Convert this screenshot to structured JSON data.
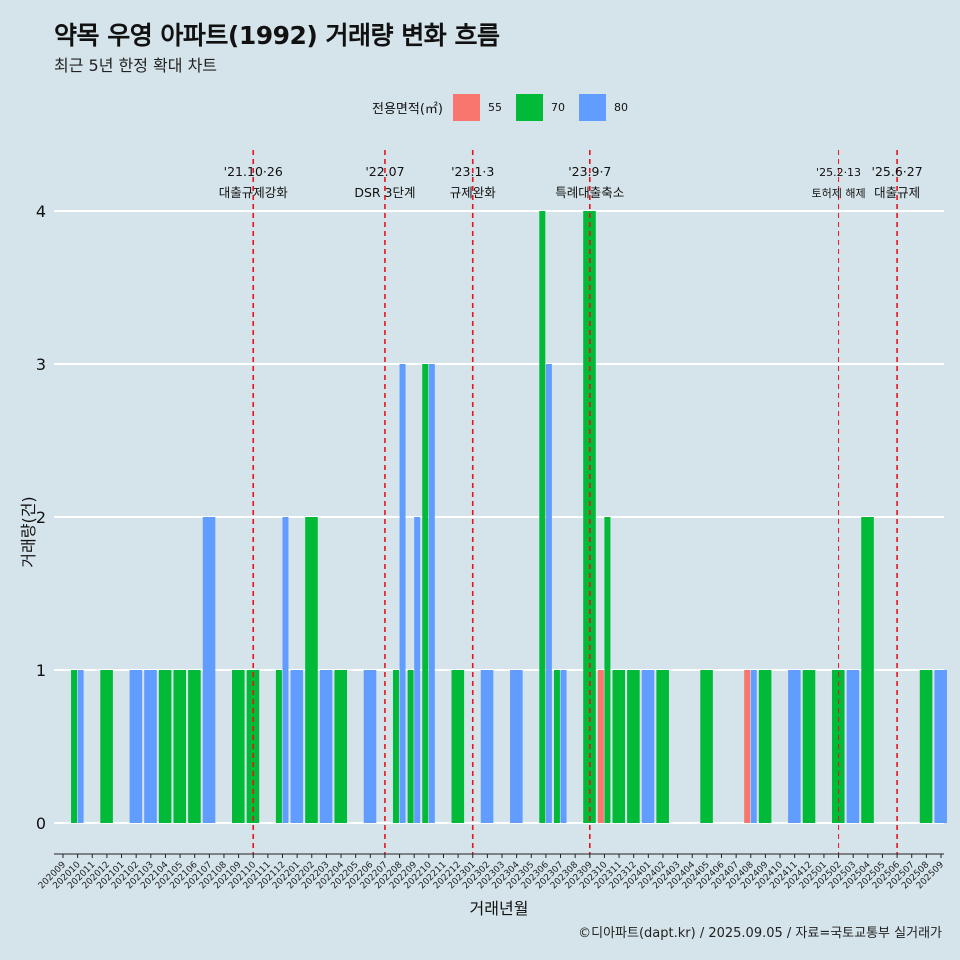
{
  "title": "약목 우영 아파트(1992) 거래량 변화 흐름",
  "subtitle": "최근 5년 한정 확대 차트",
  "caption": "©디아파트(dapt.kr) / 2025.09.05 / 자료=국토교통부 실거래가",
  "legend": {
    "title": "전용면적(㎡)",
    "items": [
      {
        "label": "55",
        "color": "#F8766D"
      },
      {
        "label": "70",
        "color": "#00BA38"
      },
      {
        "label": "80",
        "color": "#619CFF"
      }
    ]
  },
  "chart_data": {
    "type": "bar",
    "xlabel": "거래년월",
    "ylabel": "거래량(건)",
    "ylim": [
      0,
      4
    ],
    "yticks": [
      0,
      1,
      2,
      3,
      4
    ],
    "legend_position": "top",
    "grid": "horizontal",
    "categories": [
      "202009",
      "202010",
      "202011",
      "202012",
      "202101",
      "202102",
      "202103",
      "202104",
      "202105",
      "202106",
      "202107",
      "202108",
      "202109",
      "202110",
      "202111",
      "202112",
      "202201",
      "202202",
      "202203",
      "202204",
      "202205",
      "202206",
      "202207",
      "202208",
      "202209",
      "202210",
      "202211",
      "202212",
      "202301",
      "202302",
      "202303",
      "202304",
      "202305",
      "202306",
      "202307",
      "202308",
      "202309",
      "202310",
      "202311",
      "202312",
      "202401",
      "202402",
      "202403",
      "202404",
      "202405",
      "202406",
      "202407",
      "202408",
      "202409",
      "202410",
      "202411",
      "202412",
      "202501",
      "202502",
      "202503",
      "202504",
      "202505",
      "202506",
      "202507",
      "202508",
      "202509"
    ],
    "series": [
      {
        "name": "55",
        "color": "#F8766D",
        "values": [
          0,
          0,
          0,
          0,
          0,
          0,
          0,
          0,
          0,
          0,
          0,
          0,
          0,
          0,
          0,
          0,
          0,
          0,
          0,
          0,
          0,
          0,
          0,
          0,
          0,
          0,
          0,
          0,
          0,
          0,
          0,
          0,
          0,
          0,
          0,
          0,
          0,
          1,
          0,
          0,
          0,
          0,
          0,
          0,
          0,
          0,
          0,
          1,
          0,
          0,
          0,
          0,
          0,
          0,
          0,
          0,
          0,
          0,
          0,
          0,
          0
        ]
      },
      {
        "name": "70",
        "color": "#00BA38",
        "values": [
          0,
          1,
          0,
          1,
          0,
          0,
          0,
          1,
          1,
          1,
          0,
          0,
          1,
          1,
          0,
          1,
          0,
          2,
          0,
          1,
          0,
          0,
          0,
          1,
          1,
          3,
          0,
          1,
          0,
          0,
          0,
          0,
          0,
          4,
          1,
          0,
          4,
          2,
          1,
          1,
          0,
          1,
          0,
          0,
          1,
          0,
          0,
          0,
          1,
          0,
          0,
          1,
          0,
          1,
          0,
          2,
          0,
          0,
          0,
          1,
          0
        ]
      },
      {
        "name": "80",
        "color": "#619CFF",
        "values": [
          0,
          1,
          0,
          0,
          0,
          1,
          1,
          0,
          0,
          0,
          2,
          0,
          0,
          0,
          0,
          2,
          1,
          0,
          1,
          0,
          0,
          1,
          0,
          3,
          2,
          3,
          0,
          0,
          0,
          1,
          0,
          1,
          0,
          3,
          1,
          0,
          0,
          0,
          0,
          0,
          1,
          0,
          0,
          0,
          0,
          0,
          0,
          1,
          0,
          0,
          1,
          0,
          0,
          0,
          1,
          0,
          0,
          0,
          0,
          0,
          1
        ]
      }
    ],
    "annotations": [
      {
        "at": "202110",
        "date": "'21.10·26",
        "label": "대출규제강화"
      },
      {
        "at": "202207",
        "date": "'22.07",
        "label": "DSR 3단계"
      },
      {
        "at": "202301",
        "date": "'23.1·3",
        "label": "규제완화"
      },
      {
        "at": "202309",
        "date": "'23.9·7",
        "label": "특례대출축소"
      },
      {
        "at": "202502",
        "date": "'25.2·13",
        "label": "토허제 해제"
      },
      {
        "at": "202506",
        "date": "'25.6·27",
        "label": "대출규제"
      }
    ]
  }
}
